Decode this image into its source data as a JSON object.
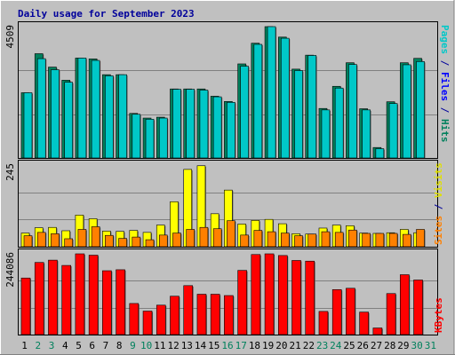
{
  "chart_data": {
    "type": "bar",
    "title": "Daily usage for September 2023",
    "categories": [
      "1",
      "2",
      "3",
      "4",
      "5",
      "6",
      "7",
      "8",
      "9",
      "10",
      "11",
      "12",
      "13",
      "14",
      "15",
      "16",
      "17",
      "18",
      "19",
      "20",
      "21",
      "22",
      "23",
      "24",
      "25",
      "26",
      "27",
      "28",
      "29",
      "30",
      "31"
    ],
    "weekend_color": "#00805c",
    "weekday_color": "#000000",
    "weekend_days": [
      "2",
      "3",
      "9",
      "10",
      "16",
      "17",
      "23",
      "24",
      "30",
      "31"
    ],
    "panels": [
      {
        "id": "pages-files-hits",
        "ymax_label": "4509",
        "ylim": [
          0,
          4509
        ],
        "right_label": [
          {
            "text": "Pages",
            "color": "#00c8c8"
          },
          {
            "text": " / ",
            "color": "#00009b"
          },
          {
            "text": "Files",
            "color": "#0000ff"
          },
          {
            "text": " / ",
            "color": "#00009b"
          },
          {
            "text": "Hits",
            "color": "#00805c"
          }
        ],
        "series": [
          {
            "name": "Hits",
            "color": "#00805c",
            "values": [
              2240,
              3580,
              3120,
              2670,
              3430,
              3400,
              2860,
              2860,
              1530,
              1370,
              1400,
              2370,
              2370,
              2370,
              2120,
              1940,
              3230,
              3940,
              4509,
              4150,
              3050,
              3530,
              1700,
              2460,
              3270,
              1690,
              360,
              1930,
              3270,
              3420,
              null
            ]
          },
          {
            "name": "Files",
            "color": "#00c8c8",
            "values": [
              2240,
              3410,
              3030,
              2600,
              3430,
              3350,
              2820,
              2860,
              1500,
              1330,
              1370,
              2360,
              2360,
              2330,
              2100,
              1910,
              3150,
              3900,
              4509,
              4110,
              3000,
              3520,
              1650,
              2400,
              3210,
              1650,
              320,
              1870,
              3200,
              3310,
              null
            ]
          }
        ]
      },
      {
        "id": "visits-sites",
        "ymax_label": "245",
        "ylim": [
          0,
          245
        ],
        "right_label": [
          {
            "text": "Sites",
            "color": "#ff8000"
          },
          {
            "text": " / ",
            "color": "#00009b"
          },
          {
            "text": "Visits",
            "color": "#e0e000"
          }
        ],
        "series": [
          {
            "name": "Visits",
            "color": "#ffff00",
            "values": [
              41,
              57,
              58,
              48,
              95,
              84,
              47,
              46,
              49,
              43,
              65,
              135,
              232,
              243,
              99,
              170,
              68,
              79,
              82,
              69,
              39,
              38,
              56,
              65,
              63,
              41,
              40,
              42,
              52,
              42,
              null
            ]
          },
          {
            "name": "Sites",
            "color": "#ff8000",
            "values": [
              33,
              43,
              39,
              24,
              52,
              60,
              34,
              25,
              29,
              21,
              35,
              41,
              52,
              58,
              54,
              78,
              35,
              49,
              45,
              41,
              33,
              38,
              45,
              43,
              50,
              40,
              40,
              40,
              37,
              52,
              null
            ]
          }
        ]
      },
      {
        "id": "kbytes",
        "ymax_label": "244086",
        "ylim": [
          0,
          244086
        ],
        "right_label": [
          {
            "text": "KBytes",
            "color": "#ff0000"
          }
        ],
        "series": [
          {
            "name": "KBytes",
            "color": "#ff0000",
            "values": [
              171000,
              218000,
              225000,
              209000,
              244086,
              240000,
              193000,
              196000,
              94000,
              71000,
              89000,
              116000,
              148000,
              122000,
              122000,
              118000,
              194000,
              242000,
              244086,
              239000,
              224000,
              222000,
              70000,
              136000,
              140000,
              68000,
              20000,
              124000,
              181000,
              165000,
              null
            ]
          }
        ]
      }
    ]
  }
}
